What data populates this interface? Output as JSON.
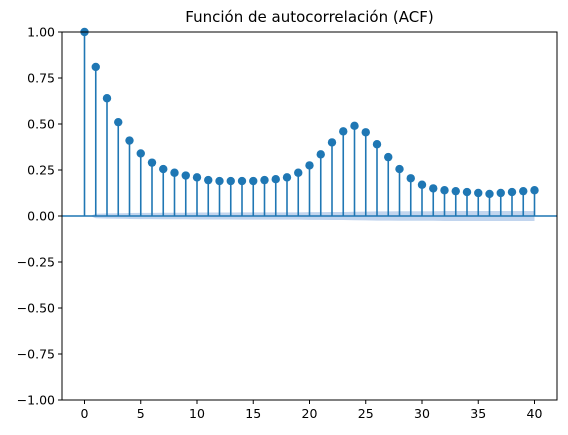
{
  "chart_data": {
    "type": "stem",
    "title": "Función de autocorrelación (ACF)",
    "xlabel": "",
    "ylabel": "",
    "xlim": [
      -2,
      42
    ],
    "ylim": [
      -1.0,
      1.0
    ],
    "x_ticks": [
      0,
      5,
      10,
      15,
      20,
      25,
      30,
      35,
      40
    ],
    "y_ticks": [
      -1.0,
      -0.75,
      -0.5,
      -0.25,
      0.0,
      0.25,
      0.5,
      0.75,
      1.0
    ],
    "x_tick_labels": [
      "0",
      "5",
      "10",
      "15",
      "20",
      "25",
      "30",
      "35",
      "40"
    ],
    "y_tick_labels": [
      "−1.00",
      "−0.75",
      "−0.50",
      "−0.25",
      "0.00",
      "0.25",
      "0.50",
      "0.75",
      "1.00"
    ],
    "lags": [
      0,
      1,
      2,
      3,
      4,
      5,
      6,
      7,
      8,
      9,
      10,
      11,
      12,
      13,
      14,
      15,
      16,
      17,
      18,
      19,
      20,
      21,
      22,
      23,
      24,
      25,
      26,
      27,
      28,
      29,
      30,
      31,
      32,
      33,
      34,
      35,
      36,
      37,
      38,
      39,
      40
    ],
    "values": [
      1.0,
      0.81,
      0.64,
      0.51,
      0.41,
      0.34,
      0.29,
      0.255,
      0.235,
      0.22,
      0.21,
      0.195,
      0.19,
      0.19,
      0.19,
      0.19,
      0.195,
      0.2,
      0.21,
      0.235,
      0.275,
      0.335,
      0.4,
      0.46,
      0.49,
      0.455,
      0.39,
      0.32,
      0.255,
      0.205,
      0.17,
      0.15,
      0.14,
      0.135,
      0.13,
      0.125,
      0.12,
      0.125,
      0.13,
      0.135,
      0.14
    ],
    "confidence_band_upper": [
      0,
      0.012,
      0.014,
      0.015,
      0.016,
      0.017,
      0.017,
      0.018,
      0.018,
      0.018,
      0.019,
      0.019,
      0.019,
      0.019,
      0.02,
      0.02,
      0.02,
      0.02,
      0.02,
      0.02,
      0.021,
      0.021,
      0.022,
      0.022,
      0.023,
      0.024,
      0.025,
      0.025,
      0.026,
      0.026,
      0.026,
      0.026,
      0.027,
      0.027,
      0.027,
      0.027,
      0.027,
      0.027,
      0.027,
      0.027,
      0.027
    ],
    "colors": {
      "stem": "#1f77b4",
      "band": "#aec7e8",
      "zero_line": "#1f77b4"
    },
    "grid": false,
    "legend": "none"
  }
}
